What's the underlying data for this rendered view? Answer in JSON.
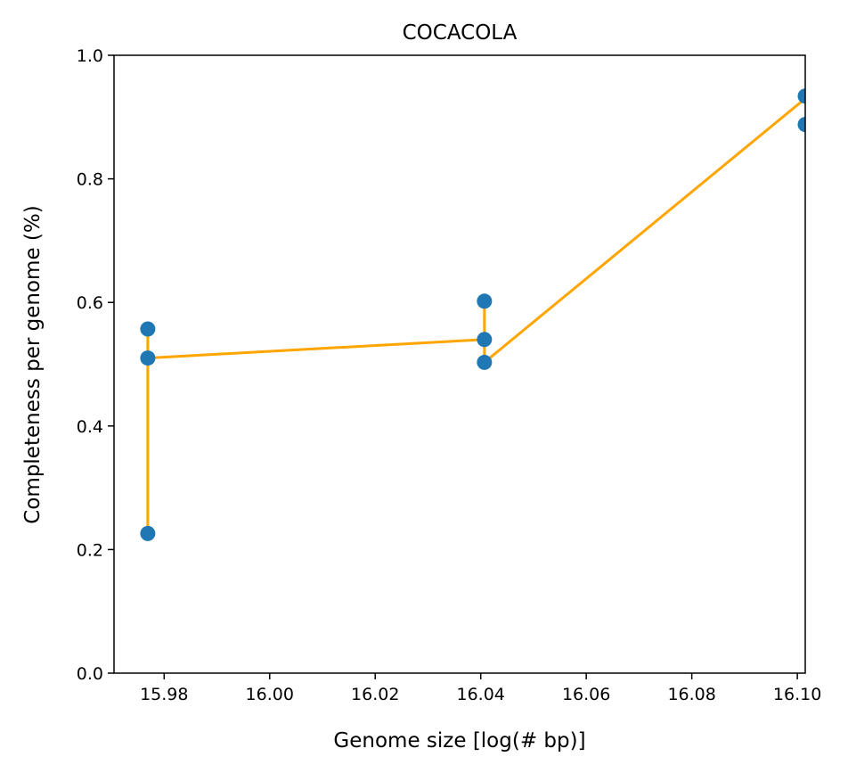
{
  "chart_data": {
    "type": "scatter",
    "title": "COCACOLA",
    "xlabel": "Genome size [log(# bp)]",
    "ylabel": "Completeness per genome (%)",
    "xlim": [
      15.9705,
      16.1015
    ],
    "ylim": [
      0.0,
      1.0
    ],
    "xticks": [
      {
        "value": 15.98,
        "label": "15.98"
      },
      {
        "value": 16.0,
        "label": "16.00"
      },
      {
        "value": 16.02,
        "label": "16.02"
      },
      {
        "value": 16.04,
        "label": "16.04"
      },
      {
        "value": 16.06,
        "label": "16.06"
      },
      {
        "value": 16.08,
        "label": "16.08"
      },
      {
        "value": 16.1,
        "label": "16.10"
      }
    ],
    "yticks": [
      {
        "value": 0.0,
        "label": "0.0"
      },
      {
        "value": 0.2,
        "label": "0.2"
      },
      {
        "value": 0.4,
        "label": "0.4"
      },
      {
        "value": 0.6,
        "label": "0.6"
      },
      {
        "value": 0.8,
        "label": "0.8"
      },
      {
        "value": 1.0,
        "label": "1.0"
      }
    ],
    "points": [
      {
        "x": 15.9769,
        "y": 0.557
      },
      {
        "x": 15.9769,
        "y": 0.51
      },
      {
        "x": 15.9769,
        "y": 0.226
      },
      {
        "x": 16.0407,
        "y": 0.602
      },
      {
        "x": 16.0407,
        "y": 0.54
      },
      {
        "x": 16.0407,
        "y": 0.503
      },
      {
        "x": 16.1015,
        "y": 0.934
      },
      {
        "x": 16.1015,
        "y": 0.888
      }
    ],
    "line": [
      {
        "x": 15.9769,
        "y": 0.226
      },
      {
        "x": 15.9769,
        "y": 0.557
      },
      {
        "x": 15.9769,
        "y": 0.51
      },
      {
        "x": 16.0407,
        "y": 0.54
      },
      {
        "x": 16.0407,
        "y": 0.602
      },
      {
        "x": 16.0407,
        "y": 0.503
      },
      {
        "x": 16.1015,
        "y": 0.93
      }
    ],
    "point_color": "#1f77b4",
    "line_color": "#ffa500",
    "grid": false
  }
}
